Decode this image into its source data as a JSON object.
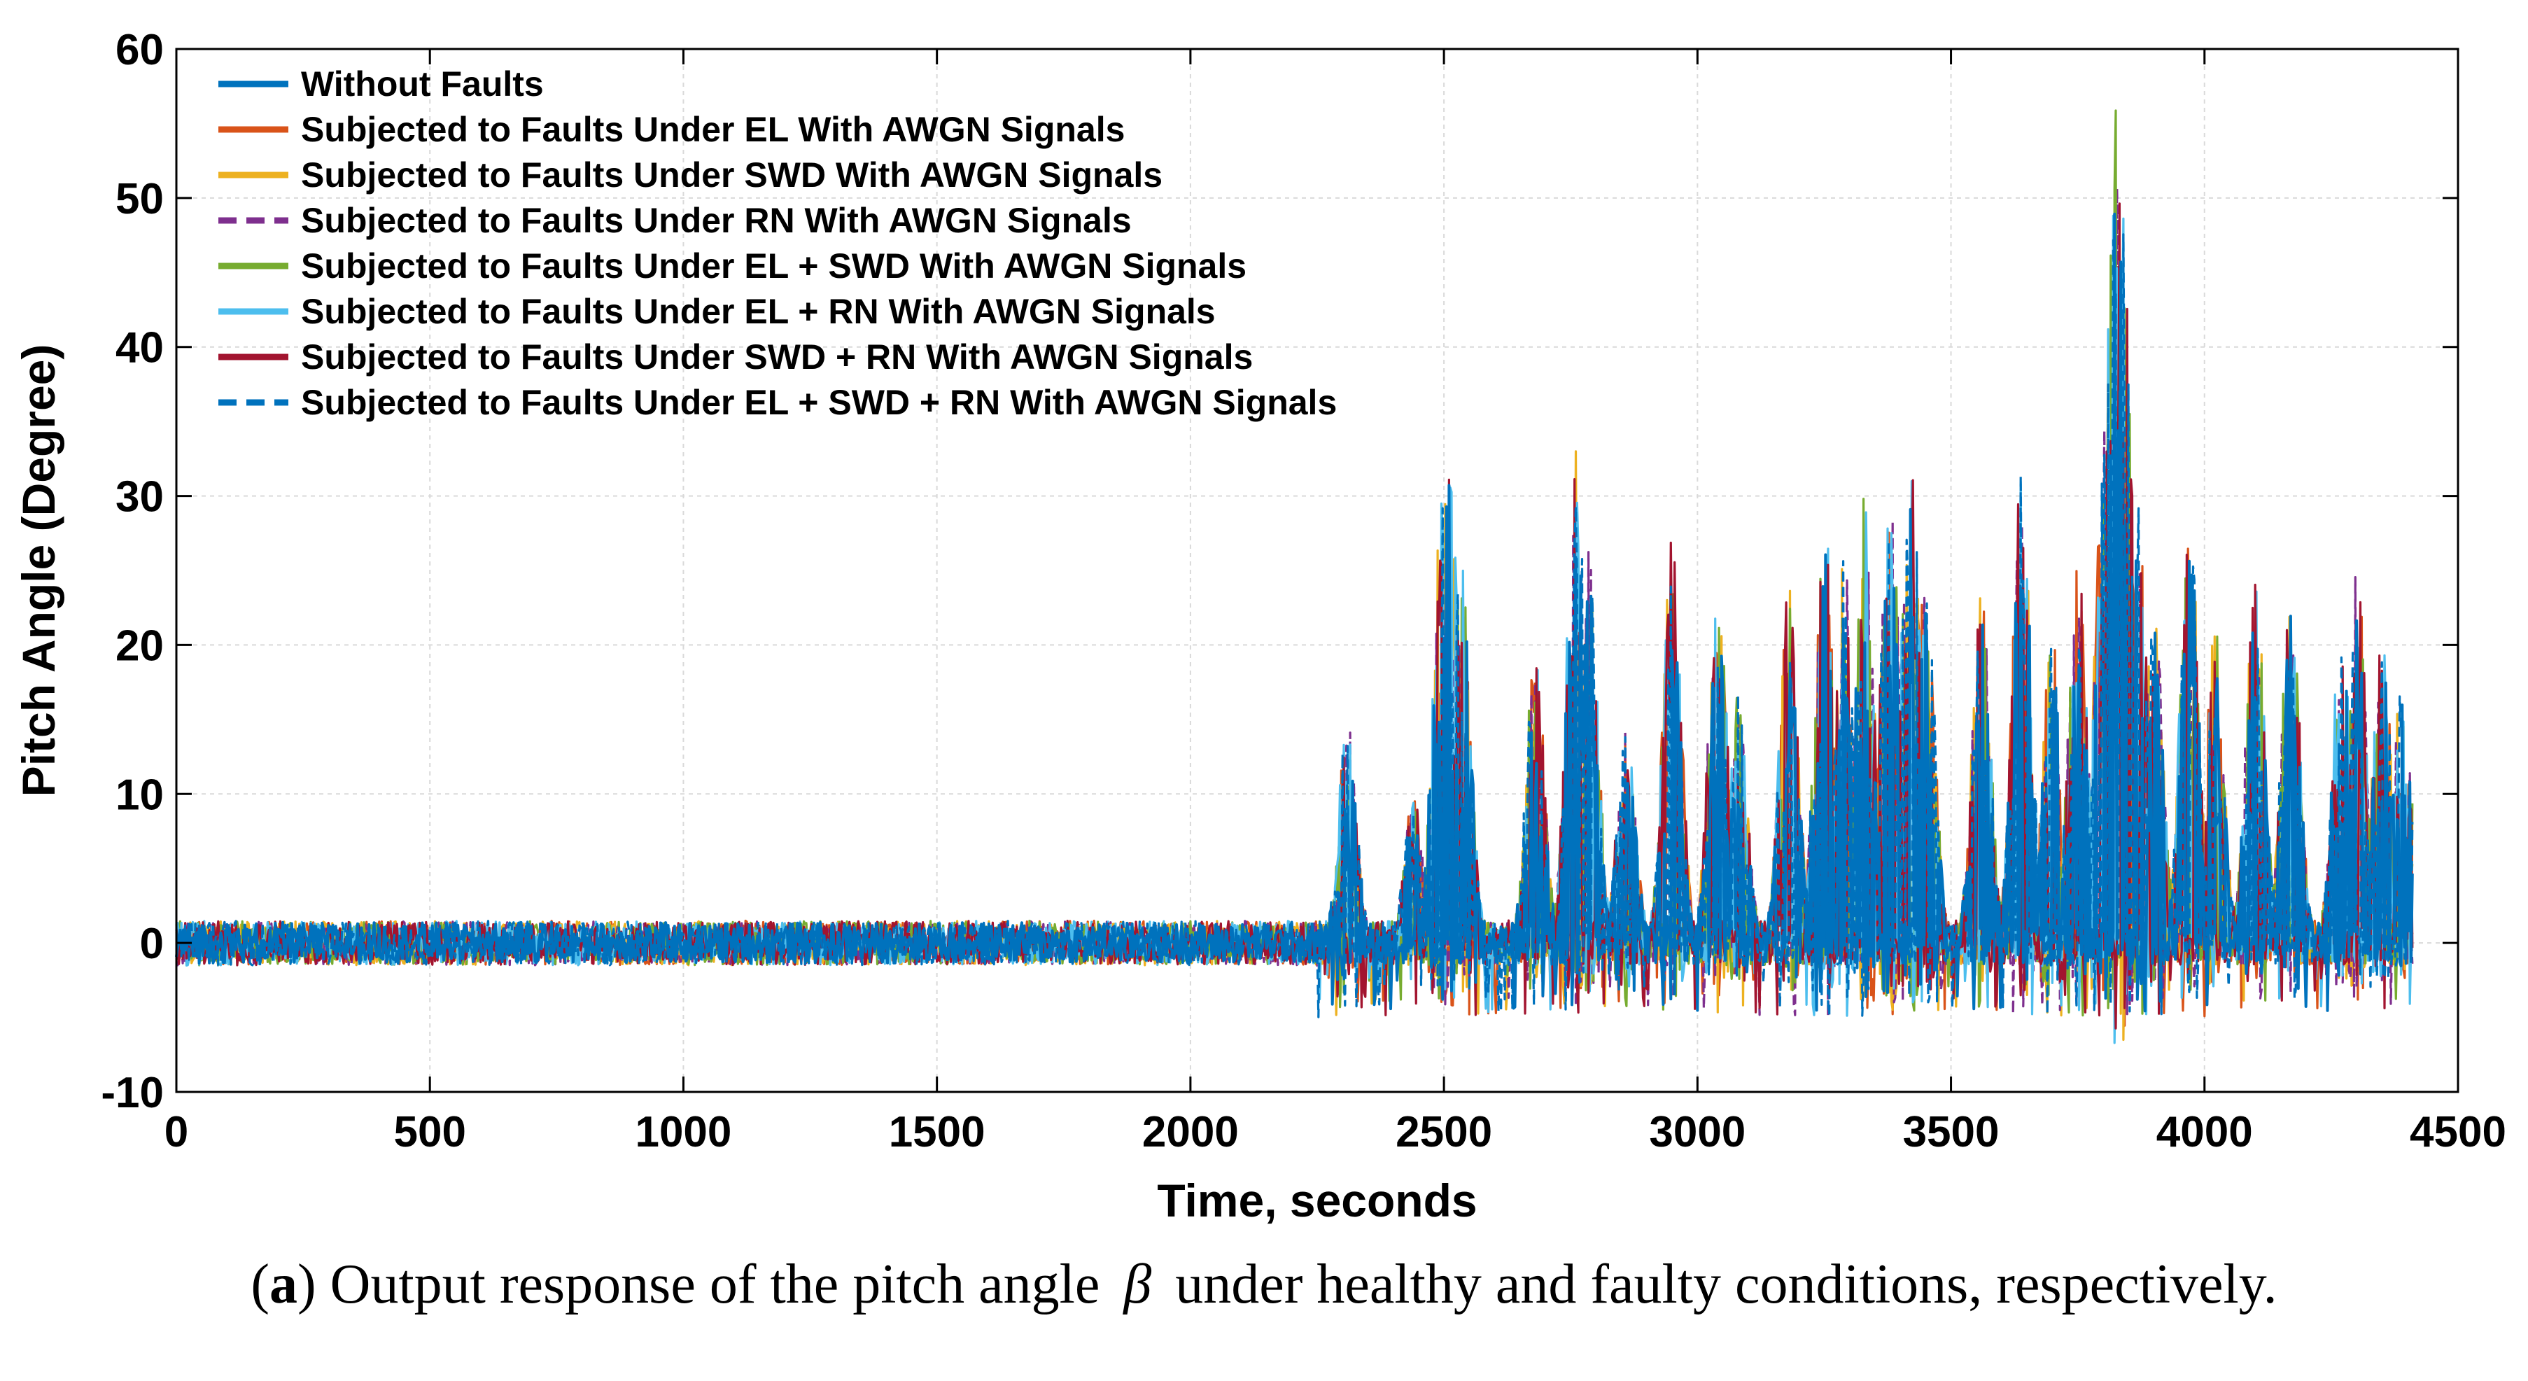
{
  "chart_data": {
    "type": "line",
    "xlabel": "Time, seconds",
    "ylabel": "Pitch Angle (Degree)",
    "xlim": [
      0,
      4500
    ],
    "ylim": [
      -10,
      60
    ],
    "xticks": [
      0,
      500,
      1000,
      1500,
      2000,
      2500,
      3000,
      3500,
      4000,
      4500
    ],
    "yticks": [
      -10,
      0,
      10,
      20,
      30,
      40,
      50,
      60
    ],
    "grid": true,
    "legend_position": "top-left",
    "series": [
      {
        "name": "Without Faults",
        "color": "#0072BD",
        "style": "solid"
      },
      {
        "name": "Subjected to Faults Under EL With AWGN Signals",
        "color": "#D95319",
        "style": "solid"
      },
      {
        "name": "Subjected to Faults Under SWD With AWGN Signals",
        "color": "#EDB120",
        "style": "solid"
      },
      {
        "name": "Subjected to Faults Under RN With AWGN Signals",
        "color": "#7E2F8E",
        "style": "dashed"
      },
      {
        "name": "Subjected to Faults Under EL + SWD With AWGN Signals",
        "color": "#77AC30",
        "style": "solid"
      },
      {
        "name": "Subjected to Faults Under EL + RN With AWGN Signals",
        "color": "#4DBEEE",
        "style": "solid"
      },
      {
        "name": "Subjected to Faults Under SWD + RN With AWGN Signals",
        "color": "#A2142F",
        "style": "solid"
      },
      {
        "name": "Subjected to Faults Under EL + SWD + RN With AWGN Signals",
        "color": "#0072BD",
        "style": "dashed"
      }
    ],
    "baseline_band": [
      -1.5,
      1.5
    ],
    "signal_end": 4410,
    "peaks": [
      [
        2310,
        15
      ],
      [
        2440,
        10
      ],
      [
        2495,
        30
      ],
      [
        2510,
        34
      ],
      [
        2535,
        26
      ],
      [
        2680,
        20
      ],
      [
        2760,
        33
      ],
      [
        2785,
        28
      ],
      [
        2860,
        15
      ],
      [
        2950,
        27
      ],
      [
        3040,
        25
      ],
      [
        3080,
        18
      ],
      [
        3180,
        25
      ],
      [
        3250,
        29
      ],
      [
        3290,
        26
      ],
      [
        3330,
        30
      ],
      [
        3380,
        32
      ],
      [
        3420,
        34
      ],
      [
        3450,
        25
      ],
      [
        3560,
        24
      ],
      [
        3640,
        33
      ],
      [
        3700,
        22
      ],
      [
        3750,
        26
      ],
      [
        3800,
        32
      ],
      [
        3815,
        45
      ],
      [
        3825,
        58
      ],
      [
        3840,
        50
      ],
      [
        3870,
        30
      ],
      [
        3900,
        24
      ],
      [
        3970,
        30
      ],
      [
        4020,
        22
      ],
      [
        4100,
        25
      ],
      [
        4170,
        24
      ],
      [
        4270,
        22
      ],
      [
        4300,
        26
      ],
      [
        4350,
        21
      ],
      [
        4390,
        18
      ]
    ]
  },
  "caption": {
    "label": "a",
    "text": "Output response of the pitch angle",
    "symbol": "β",
    "text_after": "under healthy and faulty conditions, respectively."
  }
}
